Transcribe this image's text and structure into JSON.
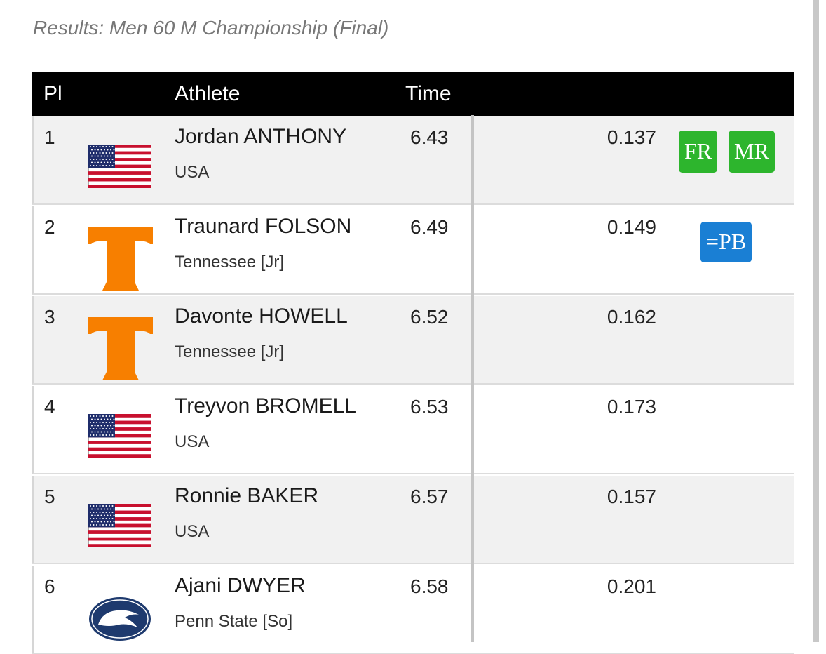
{
  "header": {
    "title": "Results: Men 60 M Championship (Final)"
  },
  "table": {
    "columns": [
      "Pl",
      "Athlete",
      "Time"
    ],
    "rows": [
      {
        "place": "1",
        "name": "Jordan ANTHONY",
        "team": "USA",
        "time": "6.43",
        "reaction": "0.137",
        "badges": [
          "FR",
          "MR"
        ]
      },
      {
        "place": "2",
        "name": "Traunard FOLSON",
        "team": "Tennessee [Jr]",
        "time": "6.49",
        "reaction": "0.149",
        "badges": [
          "=PB"
        ]
      },
      {
        "place": "3",
        "name": "Davonte HOWELL",
        "team": "Tennessee [Jr]",
        "time": "6.52",
        "reaction": "0.162"
      },
      {
        "place": "4",
        "name": "Treyvon BROMELL",
        "team": "USA",
        "time": "6.53",
        "reaction": "0.173"
      },
      {
        "place": "5",
        "name": "Ronnie BAKER",
        "team": "USA",
        "time": "6.57",
        "reaction": "0.157"
      },
      {
        "place": "6",
        "name": "Ajani DWYER",
        "team": "Penn State [So]",
        "time": "6.58",
        "reaction": "0.201"
      }
    ]
  }
}
